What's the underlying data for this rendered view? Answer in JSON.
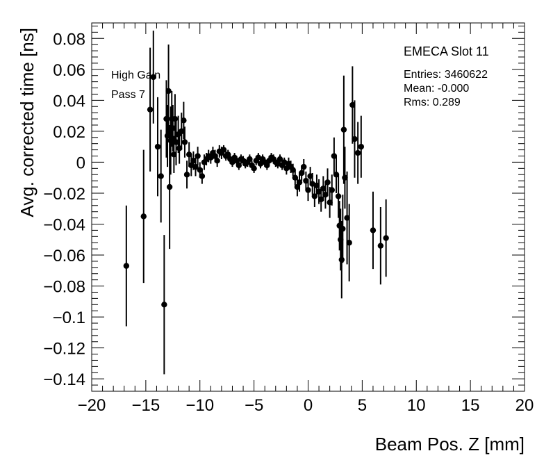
{
  "chart_data": {
    "type": "scatter",
    "title": "",
    "xlabel": "Beam Pos. Z [mm]",
    "ylabel": "Avg. corrected time [ns]",
    "xlim": [
      -20,
      20
    ],
    "ylim": [
      -0.148,
      0.09
    ],
    "x_ticks": [
      -20,
      -15,
      -10,
      -5,
      0,
      5,
      10,
      15,
      20
    ],
    "y_ticks": [
      0.08,
      0.06,
      0.04,
      0.02,
      0,
      -0.02,
      -0.04,
      -0.06,
      -0.08,
      -0.1,
      -0.12,
      -0.14
    ],
    "x_tick_labels": [
      "−20",
      "−15",
      "−10",
      "−5",
      "0",
      "5",
      "10",
      "15",
      "20"
    ],
    "y_tick_labels": [
      "0.08",
      "0.06",
      "0.04",
      "0.02",
      "0",
      "−0.02",
      "−0.04",
      "−0.06",
      "−0.08",
      "−0.1",
      "−0.12",
      "−0.14"
    ],
    "grid": false,
    "annotations": [
      "High Gain",
      "Pass 7"
    ],
    "stats_box": {
      "title": "EMECA Slot 11",
      "entries": "Entries: 3460622",
      "mean": "Mean: -0.000",
      "rms": "Rms: 0.289"
    },
    "series": [
      {
        "points": [
          [
            -16.8,
            -0.067,
            0.039
          ],
          [
            -15.2,
            -0.035,
            0.043
          ],
          [
            -14.6,
            0.034,
            0.04
          ],
          [
            -14.3,
            0.055,
            0.03
          ],
          [
            -13.9,
            0.01,
            0.032
          ],
          [
            -13.6,
            -0.009,
            0.03
          ],
          [
            -13.3,
            -0.092,
            0.045
          ],
          [
            -13.1,
            0.028,
            0.025
          ],
          [
            -13.0,
            0.017,
            0.02
          ],
          [
            -12.9,
            0.046,
            0.03
          ],
          [
            -12.8,
            -0.016,
            0.04
          ],
          [
            -12.7,
            0.014,
            0.022
          ],
          [
            -12.6,
            0.028,
            0.018
          ],
          [
            -12.5,
            0.022,
            0.015
          ],
          [
            -12.4,
            0.005,
            0.012
          ],
          [
            -12.3,
            0.028,
            0.016
          ],
          [
            -12.2,
            0.013,
            0.015
          ],
          [
            -12.0,
            0.018,
            0.012
          ],
          [
            -11.9,
            0.009,
            0.01
          ],
          [
            -11.7,
            0.02,
            0.012
          ],
          [
            -11.5,
            0.027,
            0.012
          ],
          [
            -11.4,
            0.013,
            0.01
          ],
          [
            -11.2,
            -0.008,
            0.009
          ],
          [
            -11.0,
            0.005,
            0.008
          ],
          [
            -10.8,
            -0.002,
            0.007
          ],
          [
            -10.6,
            0.001,
            0.006
          ],
          [
            -10.4,
            -0.003,
            0.006
          ],
          [
            -10.2,
            0.004,
            0.006
          ],
          [
            -10.0,
            -0.005,
            0.005
          ],
          [
            -9.8,
            -0.009,
            0.005
          ],
          [
            -9.6,
            0.0,
            0.005
          ],
          [
            -9.4,
            0.002,
            0.004
          ],
          [
            -9.2,
            0.004,
            0.004
          ],
          [
            -9.0,
            0.003,
            0.004
          ],
          [
            -8.8,
            0.006,
            0.004
          ],
          [
            -8.6,
            0.004,
            0.004
          ],
          [
            -8.4,
            0.001,
            0.004
          ],
          [
            -8.2,
            0.007,
            0.004
          ],
          [
            -8.0,
            0.006,
            0.004
          ],
          [
            -7.8,
            0.008,
            0.003
          ],
          [
            -7.6,
            0.004,
            0.003
          ],
          [
            -7.4,
            0.005,
            0.003
          ],
          [
            -7.2,
            0.002,
            0.003
          ],
          [
            -7.0,
            0.0,
            0.003
          ],
          [
            -6.8,
            0.003,
            0.003
          ],
          [
            -6.6,
            0.001,
            0.003
          ],
          [
            -6.4,
            -0.002,
            0.003
          ],
          [
            -6.2,
            0.002,
            0.003
          ],
          [
            -6.0,
            0.001,
            0.003
          ],
          [
            -5.8,
            -0.001,
            0.003
          ],
          [
            -5.6,
            0.0,
            0.003
          ],
          [
            -5.4,
            0.002,
            0.003
          ],
          [
            -5.2,
            -0.002,
            0.003
          ],
          [
            -5.0,
            -0.004,
            0.003
          ],
          [
            -4.8,
            0.001,
            0.003
          ],
          [
            -4.6,
            0.003,
            0.003
          ],
          [
            -4.4,
            -0.001,
            0.003
          ],
          [
            -4.2,
            0.002,
            0.003
          ],
          [
            -4.0,
            0.0,
            0.003
          ],
          [
            -3.8,
            -0.002,
            0.003
          ],
          [
            -3.6,
            0.001,
            0.003
          ],
          [
            -3.4,
            0.003,
            0.003
          ],
          [
            -3.2,
            0.002,
            0.003
          ],
          [
            -3.0,
            0.0,
            0.003
          ],
          [
            -2.8,
            -0.001,
            0.003
          ],
          [
            -2.6,
            0.002,
            0.003
          ],
          [
            -2.4,
            -0.002,
            0.003
          ],
          [
            -2.2,
            0.0,
            0.003
          ],
          [
            -2.0,
            -0.004,
            0.004
          ],
          [
            -1.8,
            -0.001,
            0.004
          ],
          [
            -1.6,
            -0.003,
            0.004
          ],
          [
            -1.4,
            -0.005,
            0.004
          ],
          [
            -1.2,
            -0.01,
            0.005
          ],
          [
            -1.0,
            -0.016,
            0.006
          ],
          [
            -0.8,
            -0.013,
            0.006
          ],
          [
            -0.6,
            -0.007,
            0.005
          ],
          [
            -0.4,
            -0.003,
            0.005
          ],
          [
            -0.2,
            -0.012,
            0.006
          ],
          [
            0.0,
            -0.018,
            0.007
          ],
          [
            0.2,
            -0.009,
            0.006
          ],
          [
            0.4,
            -0.014,
            0.007
          ],
          [
            0.6,
            -0.022,
            0.007
          ],
          [
            0.8,
            -0.015,
            0.007
          ],
          [
            1.0,
            -0.019,
            0.008
          ],
          [
            1.2,
            -0.024,
            0.008
          ],
          [
            1.4,
            -0.017,
            0.008
          ],
          [
            1.6,
            -0.021,
            0.009
          ],
          [
            1.8,
            -0.013,
            0.009
          ],
          [
            2.0,
            -0.026,
            0.01
          ],
          [
            2.2,
            -0.018,
            0.01
          ],
          [
            2.4,
            0.004,
            0.012
          ],
          [
            2.6,
            -0.008,
            0.012
          ],
          [
            2.8,
            -0.022,
            0.014
          ],
          [
            2.9,
            -0.041,
            0.016
          ],
          [
            3.0,
            -0.05,
            0.02
          ],
          [
            3.1,
            -0.063,
            0.025
          ],
          [
            3.2,
            -0.043,
            0.022
          ],
          [
            3.3,
            0.021,
            0.035
          ],
          [
            3.4,
            -0.01,
            0.02
          ],
          [
            3.6,
            -0.036,
            0.03
          ],
          [
            3.8,
            -0.052,
            0.025
          ],
          [
            4.1,
            0.037,
            0.025
          ],
          [
            4.3,
            0.015,
            0.025
          ],
          [
            4.6,
            0.006,
            0.02
          ],
          [
            4.9,
            0.01,
            0.02
          ],
          [
            6.0,
            -0.044,
            0.025
          ],
          [
            6.7,
            -0.054,
            0.025
          ],
          [
            7.2,
            -0.049,
            0.025
          ]
        ]
      }
    ]
  }
}
